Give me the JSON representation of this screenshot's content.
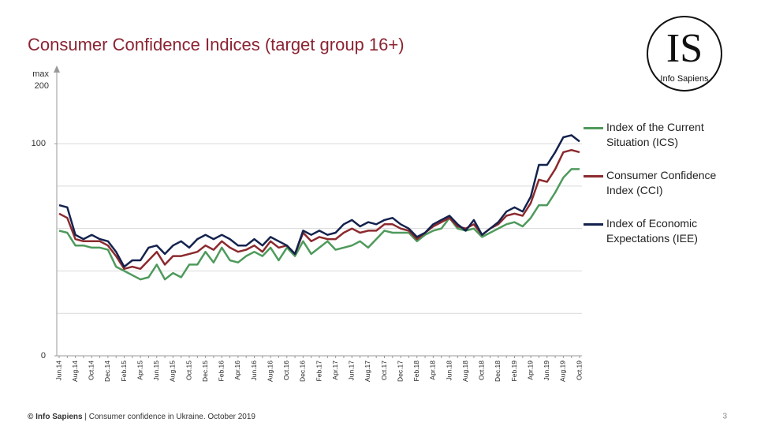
{
  "chart_data": {
    "type": "line",
    "title": "Consumer Confidence Indices (target group 16+)",
    "y_axis_note": "max",
    "y_axis_max": 200,
    "categories": [
      "Jun.14",
      null,
      "Aug.14",
      null,
      "Oct.14",
      null,
      "Dec.14",
      null,
      "Feb.15",
      null,
      "Apr.15",
      null,
      "Jun.15",
      null,
      "Aug.15",
      null,
      "Oct.15",
      null,
      "Dec.15",
      null,
      "Feb.16",
      null,
      "Apr.16",
      null,
      "Jun.16",
      null,
      "Aug.16",
      null,
      "Oct.16",
      null,
      "Dec.16",
      null,
      "Feb.17",
      null,
      "Apr.17",
      null,
      "Jun.17",
      null,
      "Aug.17",
      null,
      "Oct.17",
      null,
      "Dec.17",
      null,
      "Feb.18",
      null,
      "Apr.18",
      null,
      "Jun.18",
      null,
      "Aug.18",
      null,
      "Oct.18",
      null,
      "Dec.18",
      null,
      "Feb.19",
      null,
      "Apr.19",
      null,
      "Jun.19",
      null,
      "Aug.19",
      null,
      "Oct.19"
    ],
    "series": [
      {
        "name": "Index of the Current Situation (ICS)",
        "color": "#4e9a5c",
        "values": [
          59,
          58,
          52,
          52,
          51,
          51,
          50,
          42,
          40,
          38,
          36,
          37,
          43,
          36,
          39,
          37,
          43,
          43,
          49,
          44,
          51,
          45,
          44,
          47,
          49,
          47,
          51,
          45,
          51,
          47,
          54,
          48,
          51,
          54,
          50,
          51,
          52,
          54,
          51,
          55,
          59,
          58,
          58,
          58,
          54,
          57,
          59,
          60,
          65,
          60,
          59,
          60,
          56,
          58,
          60,
          62,
          63,
          61,
          65,
          71,
          71,
          77,
          84,
          88,
          88
        ]
      },
      {
        "name": "Consumer Confidence Index (CCI)",
        "color": "#8b2a2e",
        "values": [
          67,
          65,
          55,
          54,
          54,
          54,
          52,
          47,
          41,
          42,
          41,
          45,
          49,
          43,
          47,
          47,
          48,
          49,
          52,
          50,
          54,
          51,
          49,
          50,
          52,
          49,
          54,
          51,
          52,
          48,
          58,
          54,
          56,
          55,
          55,
          58,
          60,
          58,
          59,
          59,
          62,
          62,
          60,
          59,
          55,
          58,
          61,
          63,
          65,
          61,
          60,
          62,
          57,
          60,
          62,
          66,
          67,
          66,
          72,
          83,
          82,
          88,
          96,
          97,
          96
        ]
      },
      {
        "name": "Index of Economic Expectations (IEE)",
        "color": "#14224d",
        "values": [
          71,
          70,
          57,
          55,
          57,
          55,
          54,
          49,
          42,
          45,
          45,
          51,
          52,
          48,
          52,
          54,
          51,
          55,
          57,
          55,
          57,
          55,
          52,
          52,
          55,
          52,
          56,
          54,
          52,
          48,
          59,
          57,
          59,
          57,
          58,
          62,
          64,
          61,
          63,
          62,
          64,
          65,
          62,
          60,
          56,
          58,
          62,
          64,
          66,
          62,
          59,
          64,
          57,
          60,
          63,
          68,
          70,
          68,
          75,
          90,
          90,
          96,
          103,
          104,
          101
        ]
      }
    ],
    "ylim": [
      0,
      135
    ],
    "yticks": [
      0,
      100
    ],
    "gridlines": [
      20,
      40,
      60,
      80,
      100
    ],
    "grid": true
  },
  "logo": {
    "mark": "IS",
    "name": "Info Sapiens"
  },
  "footer": {
    "brand": "© Info Sapiens",
    "text": "| Consumer confidence in Ukraine. October 2019"
  },
  "page_number": 3
}
